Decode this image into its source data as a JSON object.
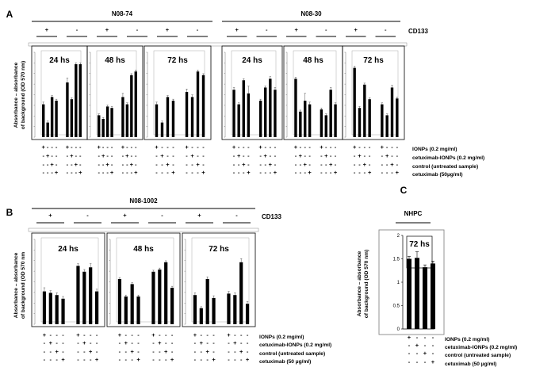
{
  "figure": {
    "panels": [
      {
        "letter": "A"
      },
      {
        "letter": "B"
      },
      {
        "letter": "C"
      }
    ],
    "ylabel_line1": "Absorbance – absorbance",
    "ylabel_line2": "of background (OD 570 nm)",
    "ylabel_B_line2": "of background (OD 570 nm",
    "ylabel_C_line2": "of background (OD 570 nm)",
    "cd133_label": "CD133",
    "treatments_A": [
      "IONPs (0.2 mg/ml)",
      "cetuximab-IONPs (0.2 mg/ml)",
      "control (untreated sample)",
      "cetuximab (50µg/ml)"
    ],
    "treatments_B": [
      "IONPs (0.2 mg/ml)",
      "cetuximab-IONPs (0.2 mg/ml)",
      "control (untreated sample)",
      "cetuximab (50 µg/ml)"
    ],
    "treatments_C": [
      "IONPs (0.2 mg/ml)",
      "cetuximab-IONPs (0.2 mg/ml)",
      "control (untreated sample)",
      "cetuximab (50 µg/ml)"
    ],
    "signs": [
      "+",
      "-"
    ]
  },
  "chart_data": [
    {
      "type": "bar",
      "panel": "A",
      "groups": [
        {
          "name": "N08-74",
          "cd133": [
            "+",
            "-",
            "+",
            "-",
            "+",
            "-"
          ]
        },
        {
          "name": "N08-30",
          "cd133": [
            "+",
            "-",
            "+",
            "-",
            "+",
            "-"
          ]
        }
      ],
      "times": [
        "24 hs",
        "48 hs",
        "72 hs"
      ],
      "subplots": [
        {
          "group": "N08-74",
          "time": "24 hs",
          "values": [
            0.45,
            0.2,
            0.55,
            0.5,
            0.75,
            0.52,
            1.0,
            1.0
          ],
          "errors": [
            0.03,
            0.02,
            0.02,
            0.02,
            0.06,
            0.02,
            0.02,
            0.02
          ]
        },
        {
          "group": "N08-74",
          "time": "48 hs",
          "values": [
            0.3,
            0.25,
            0.42,
            0.4,
            0.55,
            0.45,
            0.85,
            0.9
          ],
          "errors": [
            0.02,
            0.02,
            0.02,
            0.02,
            0.05,
            0.02,
            0.02,
            0.02
          ]
        },
        {
          "group": "N08-74",
          "time": "72 hs",
          "values": [
            0.45,
            0.2,
            0.55,
            0.5,
            0.62,
            0.55,
            0.9,
            0.85
          ],
          "errors": [
            0.03,
            0.02,
            0.02,
            0.02,
            0.04,
            0.03,
            0.02,
            0.02
          ]
        },
        {
          "group": "N08-30",
          "time": "24 hs",
          "values": [
            0.65,
            0.45,
            0.78,
            0.6,
            0.5,
            0.68,
            0.8,
            0.65
          ],
          "errors": [
            0.03,
            0.02,
            0.02,
            0.1,
            0.02,
            0.02,
            0.03,
            0.03
          ]
        },
        {
          "group": "N08-30",
          "time": "48 hs",
          "values": [
            0.8,
            0.35,
            0.5,
            0.45,
            0.38,
            0.3,
            0.65,
            0.45
          ],
          "errors": [
            0.02,
            0.02,
            0.1,
            0.03,
            0.02,
            0.02,
            0.03,
            0.02
          ]
        },
        {
          "group": "N08-30",
          "time": "72 hs",
          "values": [
            0.95,
            0.4,
            0.72,
            0.52,
            0.45,
            0.3,
            0.68,
            0.53
          ],
          "errors": [
            0.02,
            0.02,
            0.02,
            0.02,
            0.02,
            0.02,
            0.03,
            0.02
          ]
        }
      ]
    },
    {
      "type": "bar",
      "panel": "B",
      "groups": [
        {
          "name": "N08-1002",
          "cd133": [
            "+",
            "-",
            "+",
            "-",
            "+",
            "-"
          ]
        }
      ],
      "times": [
        "24 hs",
        "48 hs",
        "72 hs"
      ],
      "subplots": [
        {
          "group": "N08-1002",
          "time": "24 hs",
          "values": [
            0.45,
            0.43,
            0.4,
            0.35,
            0.8,
            0.72,
            0.78,
            0.45
          ],
          "errors": [
            0.05,
            0.03,
            0.03,
            0.03,
            0.03,
            0.03,
            0.05,
            0.03
          ]
        },
        {
          "group": "N08-1002",
          "time": "48 hs",
          "values": [
            0.62,
            0.38,
            0.55,
            0.38,
            0.72,
            0.75,
            0.85,
            0.5
          ],
          "errors": [
            0.02,
            0.02,
            0.02,
            0.02,
            0.02,
            0.02,
            0.02,
            0.02
          ]
        },
        {
          "group": "N08-1002",
          "time": "72 hs",
          "values": [
            0.4,
            0.22,
            0.62,
            0.36,
            0.42,
            0.4,
            0.85,
            0.28
          ],
          "errors": [
            0.03,
            0.02,
            0.03,
            0.03,
            0.03,
            0.03,
            0.05,
            0.03
          ]
        }
      ]
    },
    {
      "type": "bar",
      "panel": "C",
      "title": "NHPC",
      "time": "72 hs",
      "ylim": [
        0,
        2
      ],
      "yticks": [
        "0",
        "0.5",
        "1",
        "1.5",
        "2"
      ],
      "values": [
        1.5,
        1.52,
        1.32,
        1.4
      ],
      "errors": [
        0.05,
        0.13,
        0.05,
        0.05
      ]
    }
  ]
}
